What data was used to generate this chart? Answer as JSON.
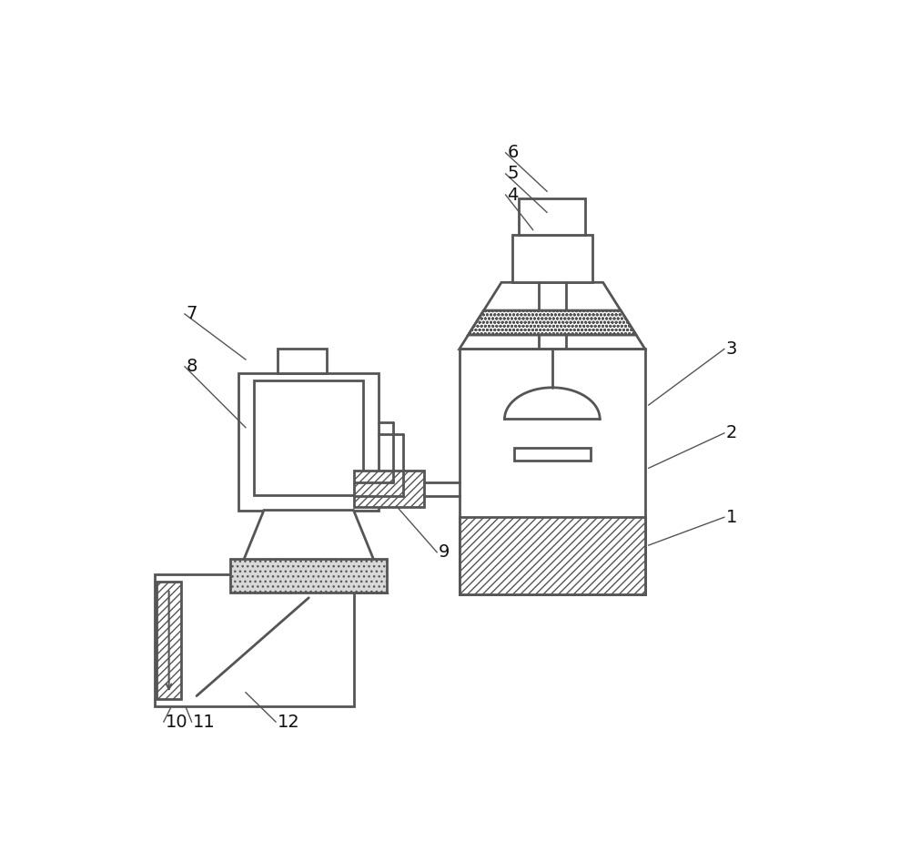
{
  "bg_color": "#ffffff",
  "line_color": "#555555",
  "label_color": "#111111",
  "label_fontsize": 14,
  "figsize": [
    10.0,
    9.24
  ],
  "dpi": 100
}
